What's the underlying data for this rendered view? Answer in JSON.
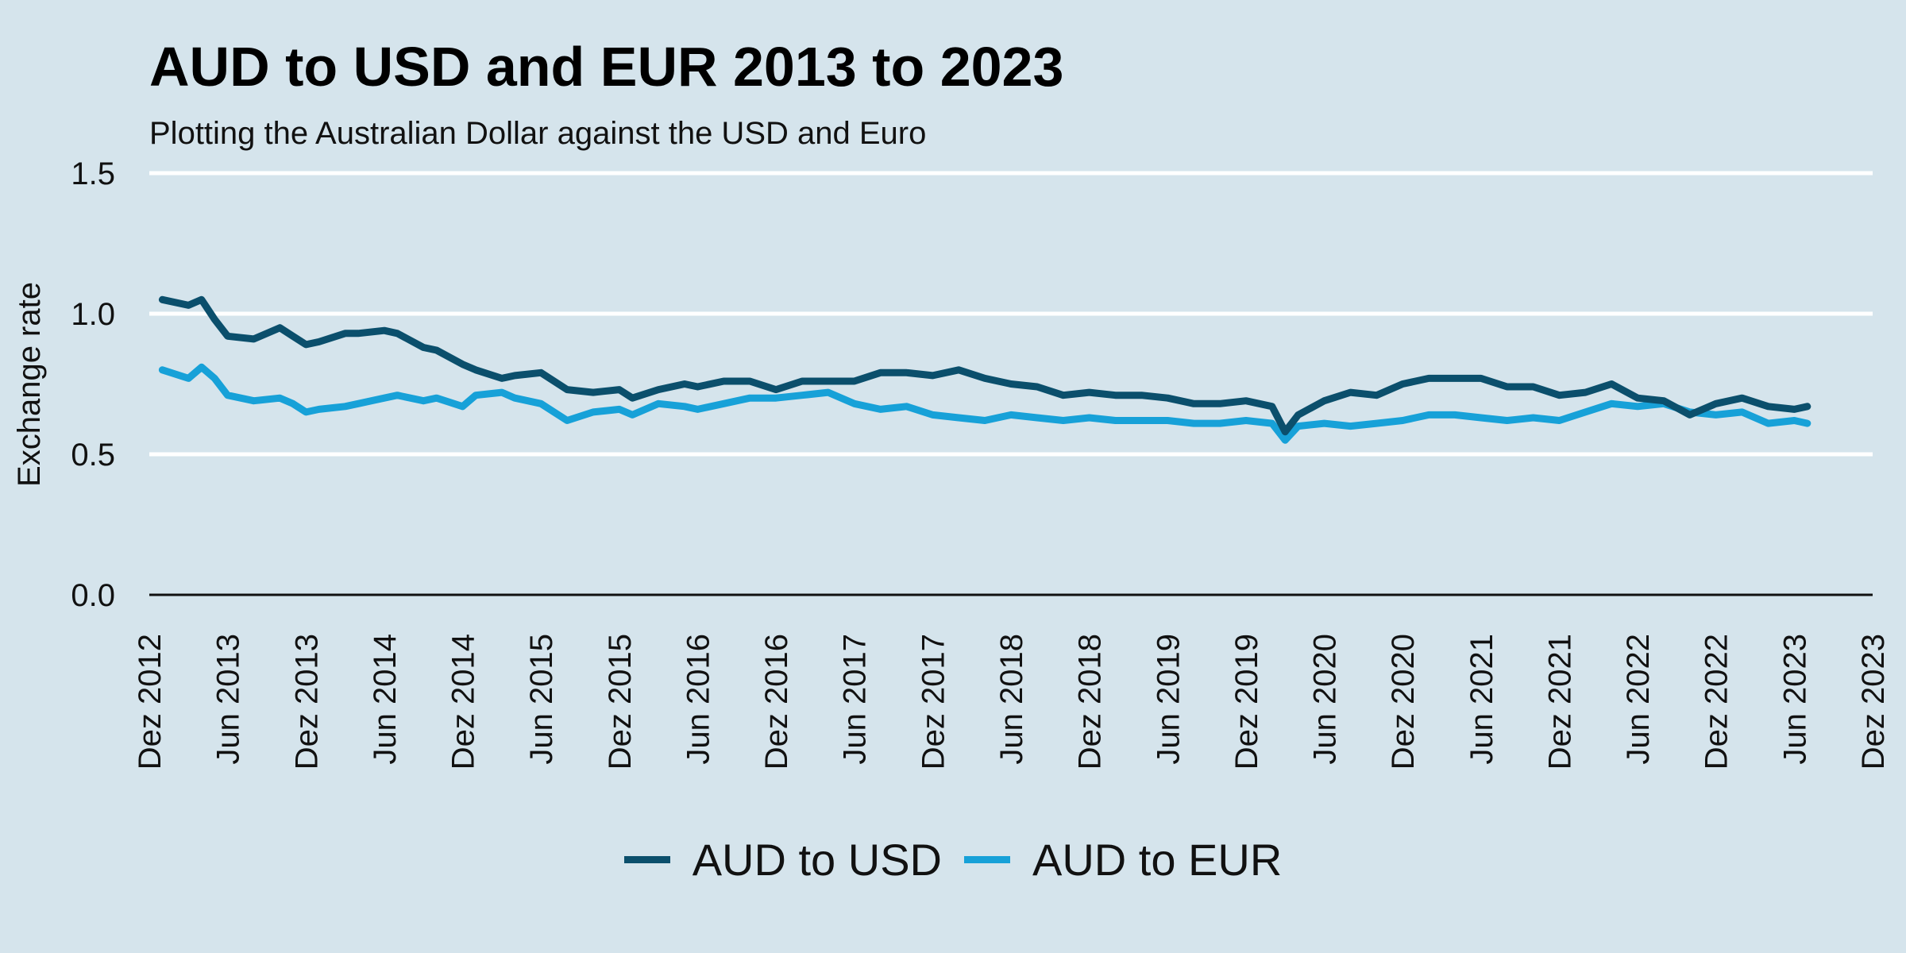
{
  "chart_data": {
    "type": "line",
    "title": "AUD to USD and EUR 2013 to 2023",
    "subtitle": "Plotting the Australian Dollar against the USD and Euro",
    "xlabel": "",
    "ylabel": "Exchange rate",
    "ylim": [
      0,
      1.5
    ],
    "yticks": [
      "0.0",
      "0.5",
      "1.0",
      "1.5"
    ],
    "xlim": [
      "2012-12",
      "2023-12"
    ],
    "xticks": [
      "Dez 2012",
      "Jun 2013",
      "Dez 2013",
      "Jun 2014",
      "Dez 2014",
      "Jun 2015",
      "Dez 2015",
      "Jun 2016",
      "Dez 2016",
      "Jun 2017",
      "Dez 2017",
      "Jun 2018",
      "Dez 2018",
      "Jun 2019",
      "Dez 2019",
      "Jun 2020",
      "Dez 2020",
      "Jun 2021",
      "Dez 2021",
      "Jun 2022",
      "Dez 2022",
      "Jun 2023",
      "Dez 2023"
    ],
    "grid": "horizontal",
    "legend_position": "bottom",
    "series": [
      {
        "name": "AUD to USD",
        "color": "#0b4f6c",
        "x": [
          "2013-01",
          "2013-03",
          "2013-04",
          "2013-05",
          "2013-06",
          "2013-08",
          "2013-10",
          "2013-11",
          "2013-12",
          "2014-01",
          "2014-03",
          "2014-04",
          "2014-06",
          "2014-07",
          "2014-09",
          "2014-10",
          "2014-12",
          "2015-01",
          "2015-03",
          "2015-04",
          "2015-06",
          "2015-08",
          "2015-10",
          "2015-12",
          "2016-01",
          "2016-03",
          "2016-05",
          "2016-06",
          "2016-08",
          "2016-10",
          "2016-12",
          "2017-02",
          "2017-04",
          "2017-06",
          "2017-08",
          "2017-10",
          "2017-12",
          "2018-02",
          "2018-04",
          "2018-06",
          "2018-08",
          "2018-10",
          "2018-12",
          "2019-02",
          "2019-04",
          "2019-06",
          "2019-08",
          "2019-10",
          "2019-12",
          "2020-02",
          "2020-03",
          "2020-04",
          "2020-06",
          "2020-08",
          "2020-10",
          "2020-12",
          "2021-02",
          "2021-04",
          "2021-06",
          "2021-08",
          "2021-10",
          "2021-12",
          "2022-02",
          "2022-04",
          "2022-06",
          "2022-08",
          "2022-10",
          "2022-12",
          "2023-02",
          "2023-04",
          "2023-06",
          "2023-07"
        ],
        "values": [
          1.05,
          1.03,
          1.05,
          0.98,
          0.92,
          0.91,
          0.95,
          0.92,
          0.89,
          0.9,
          0.93,
          0.93,
          0.94,
          0.93,
          0.88,
          0.87,
          0.82,
          0.8,
          0.77,
          0.78,
          0.79,
          0.73,
          0.72,
          0.73,
          0.7,
          0.73,
          0.75,
          0.74,
          0.76,
          0.76,
          0.73,
          0.76,
          0.76,
          0.76,
          0.79,
          0.79,
          0.78,
          0.8,
          0.77,
          0.75,
          0.74,
          0.71,
          0.72,
          0.71,
          0.71,
          0.7,
          0.68,
          0.68,
          0.69,
          0.67,
          0.58,
          0.64,
          0.69,
          0.72,
          0.71,
          0.75,
          0.77,
          0.77,
          0.77,
          0.74,
          0.74,
          0.71,
          0.72,
          0.75,
          0.7,
          0.69,
          0.64,
          0.68,
          0.7,
          0.67,
          0.66,
          0.67
        ]
      },
      {
        "name": "AUD to EUR",
        "color": "#17a1d8",
        "x": [
          "2013-01",
          "2013-03",
          "2013-04",
          "2013-05",
          "2013-06",
          "2013-08",
          "2013-10",
          "2013-11",
          "2013-12",
          "2014-01",
          "2014-03",
          "2014-04",
          "2014-06",
          "2014-07",
          "2014-09",
          "2014-10",
          "2014-12",
          "2015-01",
          "2015-03",
          "2015-04",
          "2015-06",
          "2015-08",
          "2015-10",
          "2015-12",
          "2016-01",
          "2016-03",
          "2016-05",
          "2016-06",
          "2016-08",
          "2016-10",
          "2016-12",
          "2017-02",
          "2017-04",
          "2017-06",
          "2017-08",
          "2017-10",
          "2017-12",
          "2018-02",
          "2018-04",
          "2018-06",
          "2018-08",
          "2018-10",
          "2018-12",
          "2019-02",
          "2019-04",
          "2019-06",
          "2019-08",
          "2019-10",
          "2019-12",
          "2020-02",
          "2020-03",
          "2020-04",
          "2020-06",
          "2020-08",
          "2020-10",
          "2020-12",
          "2021-02",
          "2021-04",
          "2021-06",
          "2021-08",
          "2021-10",
          "2021-12",
          "2022-02",
          "2022-04",
          "2022-06",
          "2022-08",
          "2022-10",
          "2022-12",
          "2023-02",
          "2023-04",
          "2023-06",
          "2023-07"
        ],
        "values": [
          0.8,
          0.77,
          0.81,
          0.77,
          0.71,
          0.69,
          0.7,
          0.68,
          0.65,
          0.66,
          0.67,
          0.68,
          0.7,
          0.71,
          0.69,
          0.7,
          0.67,
          0.71,
          0.72,
          0.7,
          0.68,
          0.62,
          0.65,
          0.66,
          0.64,
          0.68,
          0.67,
          0.66,
          0.68,
          0.7,
          0.7,
          0.71,
          0.72,
          0.68,
          0.66,
          0.67,
          0.64,
          0.63,
          0.62,
          0.64,
          0.63,
          0.62,
          0.63,
          0.62,
          0.62,
          0.62,
          0.61,
          0.61,
          0.62,
          0.61,
          0.55,
          0.6,
          0.61,
          0.6,
          0.61,
          0.62,
          0.64,
          0.64,
          0.63,
          0.62,
          0.63,
          0.62,
          0.65,
          0.68,
          0.67,
          0.68,
          0.65,
          0.64,
          0.65,
          0.61,
          0.62,
          0.61
        ]
      }
    ]
  }
}
